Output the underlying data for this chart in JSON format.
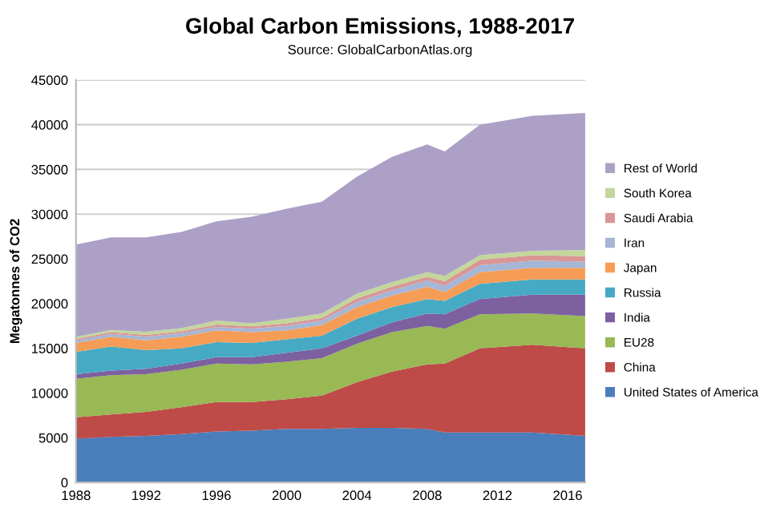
{
  "chart_data": {
    "type": "area",
    "stacked": true,
    "title": "Global Carbon Emissions, 1988-2017",
    "subtitle": "Source: GlobalCarbonAtlas.org",
    "ylabel": "Megatonnes of CO2",
    "x": [
      1988,
      1990,
      1992,
      1994,
      1996,
      1998,
      2000,
      2002,
      2004,
      2006,
      2008,
      2009,
      2011,
      2014,
      2017
    ],
    "series": [
      {
        "name": "United States of America",
        "color": "#4a7ebb",
        "values": [
          4900,
          5100,
          5200,
          5400,
          5700,
          5800,
          6000,
          6000,
          6100,
          6100,
          6000,
          5600,
          5600,
          5600,
          5200
        ]
      },
      {
        "name": "China",
        "color": "#be4b48",
        "values": [
          2400,
          2500,
          2700,
          3000,
          3300,
          3200,
          3300,
          3700,
          5100,
          6300,
          7200,
          7700,
          9400,
          9800,
          9800
        ]
      },
      {
        "name": "EU28",
        "color": "#98b954",
        "values": [
          4300,
          4400,
          4200,
          4200,
          4300,
          4200,
          4200,
          4200,
          4300,
          4400,
          4300,
          3900,
          3800,
          3500,
          3600
        ]
      },
      {
        "name": "India",
        "color": "#7d60a0",
        "values": [
          500,
          500,
          600,
          700,
          700,
          800,
          1000,
          1100,
          900,
          1100,
          1400,
          1600,
          1700,
          2100,
          2400
        ]
      },
      {
        "name": "Russia",
        "color": "#46aac5",
        "values": [
          2500,
          2700,
          2100,
          1700,
          1700,
          1600,
          1500,
          1400,
          1900,
          1700,
          1600,
          1500,
          1700,
          1700,
          1700
        ]
      },
      {
        "name": "Japan",
        "color": "#f59d56",
        "values": [
          1000,
          1100,
          1100,
          1300,
          1300,
          1200,
          1000,
          1200,
          1300,
          1300,
          1400,
          1000,
          1300,
          1300,
          1300
        ]
      },
      {
        "name": "Iran",
        "color": "#a5b6d6",
        "values": [
          300,
          300,
          400,
          400,
          400,
          400,
          500,
          500,
          600,
          600,
          700,
          700,
          800,
          800,
          700
        ]
      },
      {
        "name": "Saudi Arabia",
        "color": "#d99694",
        "values": [
          150,
          200,
          200,
          200,
          250,
          250,
          300,
          300,
          400,
          400,
          400,
          500,
          600,
          600,
          600
        ]
      },
      {
        "name": "South Korea",
        "color": "#c3d69b",
        "values": [
          250,
          250,
          350,
          350,
          450,
          350,
          500,
          500,
          500,
          500,
          500,
          600,
          500,
          500,
          700
        ]
      },
      {
        "name": "Rest of World",
        "color": "#ada0c6",
        "values": [
          10300,
          10350,
          10550,
          10750,
          11100,
          11900,
          12300,
          12500,
          13100,
          14000,
          14300,
          13900,
          14600,
          15100,
          15300
        ]
      }
    ],
    "xlim": [
      1988,
      2017
    ],
    "xticks": [
      1988,
      1992,
      1996,
      2000,
      2004,
      2008,
      2012,
      2016
    ],
    "ylim": [
      0,
      45000
    ],
    "yticks": [
      0,
      5000,
      10000,
      15000,
      20000,
      25000,
      30000,
      35000,
      40000,
      45000
    ],
    "grid": "y",
    "legend": "right"
  }
}
